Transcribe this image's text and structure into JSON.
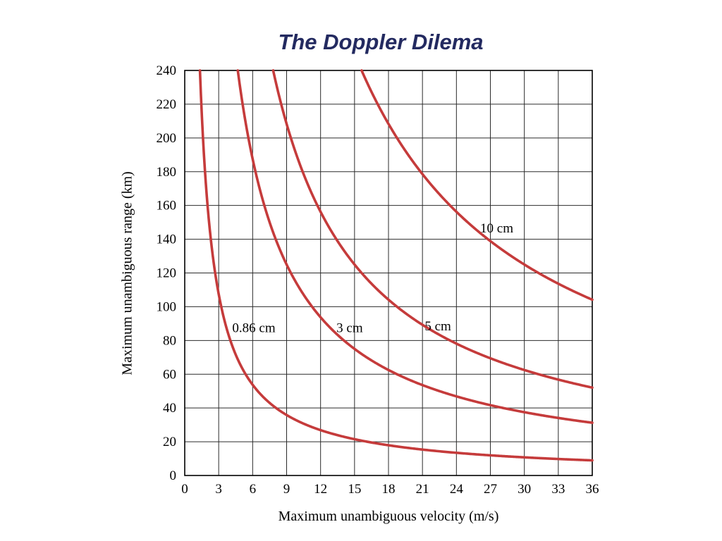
{
  "chart_data": {
    "type": "line",
    "title": "The Doppler Dilema",
    "xlabel": "Maximum unambiguous velocity (m/s)",
    "ylabel": "Maximum unambiguous range (km)",
    "xlim": [
      0,
      36
    ],
    "ylim": [
      0,
      240
    ],
    "xticks": [
      0,
      3,
      6,
      9,
      12,
      15,
      18,
      21,
      24,
      27,
      30,
      33,
      36
    ],
    "yticks": [
      0,
      20,
      40,
      60,
      80,
      100,
      120,
      140,
      160,
      180,
      200,
      220,
      240
    ],
    "grid": true,
    "legend_position": "inline-labels",
    "curve_color": "#c53b3b",
    "relation": "range_km = constant / velocity_mps (hyperbola per wavelength)",
    "series": [
      {
        "name": "0.86 cm",
        "constant": 322.5,
        "label_x": 4.2,
        "label_y": 85,
        "points": [
          [
            1.34,
            240
          ],
          [
            3,
            107.5
          ],
          [
            6,
            53.8
          ],
          [
            9,
            35.8
          ],
          [
            12,
            26.9
          ],
          [
            15,
            21.5
          ],
          [
            18,
            17.9
          ],
          [
            21,
            15.4
          ],
          [
            24,
            13.4
          ],
          [
            27,
            11.9
          ],
          [
            30,
            10.8
          ],
          [
            33,
            9.8
          ],
          [
            36,
            9.0
          ]
        ]
      },
      {
        "name": "3 cm",
        "constant": 1125,
        "label_x": 13.4,
        "label_y": 85,
        "points": [
          [
            4.69,
            240
          ],
          [
            6,
            187.5
          ],
          [
            9,
            125
          ],
          [
            12,
            93.8
          ],
          [
            15,
            75
          ],
          [
            18,
            62.5
          ],
          [
            21,
            53.6
          ],
          [
            24,
            46.9
          ],
          [
            27,
            41.7
          ],
          [
            30,
            37.5
          ],
          [
            33,
            34.1
          ],
          [
            36,
            31.3
          ]
        ]
      },
      {
        "name": "5 cm",
        "constant": 1875,
        "label_x": 21.2,
        "label_y": 86,
        "points": [
          [
            7.81,
            240
          ],
          [
            9,
            208.3
          ],
          [
            12,
            156.3
          ],
          [
            15,
            125
          ],
          [
            18,
            104.2
          ],
          [
            21,
            89.3
          ],
          [
            24,
            78.1
          ],
          [
            27,
            69.4
          ],
          [
            30,
            62.5
          ],
          [
            33,
            56.8
          ],
          [
            36,
            52.1
          ]
        ]
      },
      {
        "name": "10 cm",
        "constant": 3750,
        "label_x": 26.1,
        "label_y": 144,
        "points": [
          [
            15.63,
            240
          ],
          [
            18,
            208.3
          ],
          [
            21,
            178.6
          ],
          [
            24,
            156.3
          ],
          [
            27,
            138.9
          ],
          [
            30,
            125
          ],
          [
            33,
            113.6
          ],
          [
            36,
            104.2
          ]
        ]
      }
    ]
  }
}
